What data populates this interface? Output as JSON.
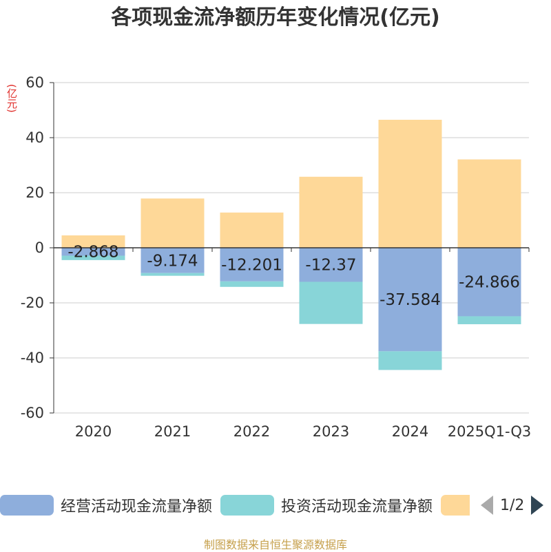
{
  "chart_data": {
    "type": "bar",
    "stacked": true,
    "title": "各项现金流净额历年变化情况(亿元)",
    "ylabel": "(亿元)",
    "ylim": [
      -60,
      60
    ],
    "yticks": [
      60,
      40,
      20,
      0,
      -20,
      -40,
      -60
    ],
    "categories": [
      "2020",
      "2021",
      "2022",
      "2023",
      "2024",
      "2025Q1-Q3"
    ],
    "series": [
      {
        "name": "经营活动现金流量净额",
        "color": "#8eaedc",
        "values": [
          -2.868,
          -9.174,
          -12.201,
          -12.37,
          -37.584,
          -24.866
        ],
        "show_labels": true
      },
      {
        "name": "投资活动现金流量净额",
        "color": "#88d5d8",
        "values": [
          -1.6,
          -1.0,
          -2.0,
          -15.3,
          -6.8,
          -2.9
        ],
        "show_labels": false
      },
      {
        "name": "",
        "color": "#fed898",
        "values": [
          4.5,
          17.9,
          12.8,
          25.8,
          46.5,
          32.1
        ],
        "show_labels": false
      }
    ],
    "legend_position": "bottom"
  },
  "legend": {
    "items": [
      {
        "label": "经营活动现金流量净额",
        "color": "#8eaedc"
      },
      {
        "label": "投资活动现金流量净额",
        "color": "#88d5d8"
      },
      {
        "label": "",
        "color": "#fed898"
      }
    ],
    "page_text": "1/2"
  },
  "source": "制图数据来自恒生聚源数据库"
}
